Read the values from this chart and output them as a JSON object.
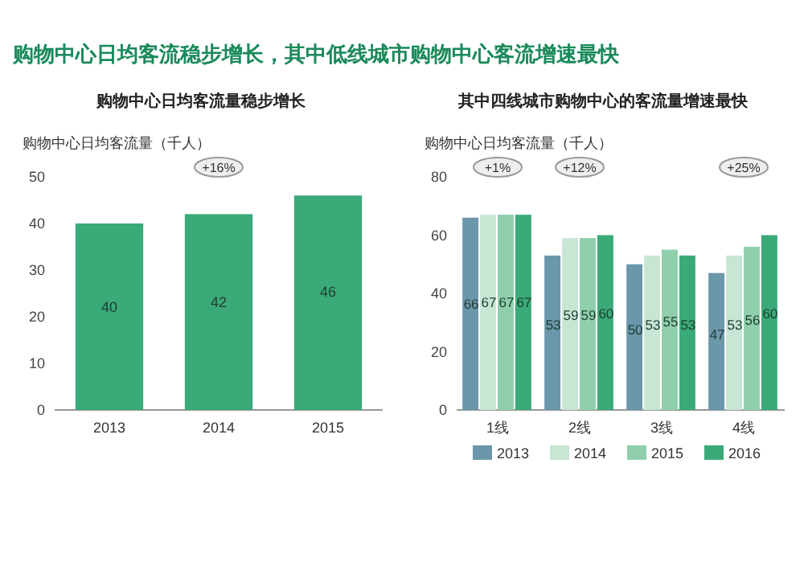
{
  "chart_data": [
    {
      "type": "bar",
      "title": "购物中心日均客流稳步增长，其中低线城市购物中心客流增速最快",
      "subtitle": "购物中心日均客流量稳步增长",
      "ylabel": "购物中心日均客流量（千人）",
      "categories": [
        "2013",
        "2014",
        "2015"
      ],
      "series": [
        {
          "color": "#3aaa78",
          "values": [
            40,
            42,
            46
          ]
        }
      ],
      "ylim": [
        0,
        50
      ],
      "yticks": [
        0,
        10,
        20,
        30,
        40,
        50
      ],
      "data_labels": true,
      "annotations": [
        "+16%"
      ]
    },
    {
      "type": "bar",
      "subtitle": "其中四线城市购物中心的客流量增速最快",
      "ylabel": "购物中心日均客流量（千人）",
      "categories": [
        "1线",
        "2线",
        "3线",
        "4线"
      ],
      "series": [
        {
          "name": "2013",
          "color": "#6b97ab",
          "values": [
            66,
            53,
            50,
            47
          ]
        },
        {
          "name": "2014",
          "color": "#c8e6d4",
          "values": [
            67,
            59,
            53,
            53
          ]
        },
        {
          "name": "2015",
          "color": "#8fcfab",
          "values": [
            67,
            59,
            55,
            56
          ]
        },
        {
          "name": "2016",
          "color": "#3aaa78",
          "values": [
            67,
            60,
            53,
            60
          ]
        }
      ],
      "ylim": [
        0,
        80
      ],
      "yticks": [
        0,
        20,
        40,
        60,
        80
      ],
      "data_labels": true,
      "legend": "bottom",
      "annotations": [
        "+1%",
        "+12%",
        "+25%"
      ]
    }
  ]
}
